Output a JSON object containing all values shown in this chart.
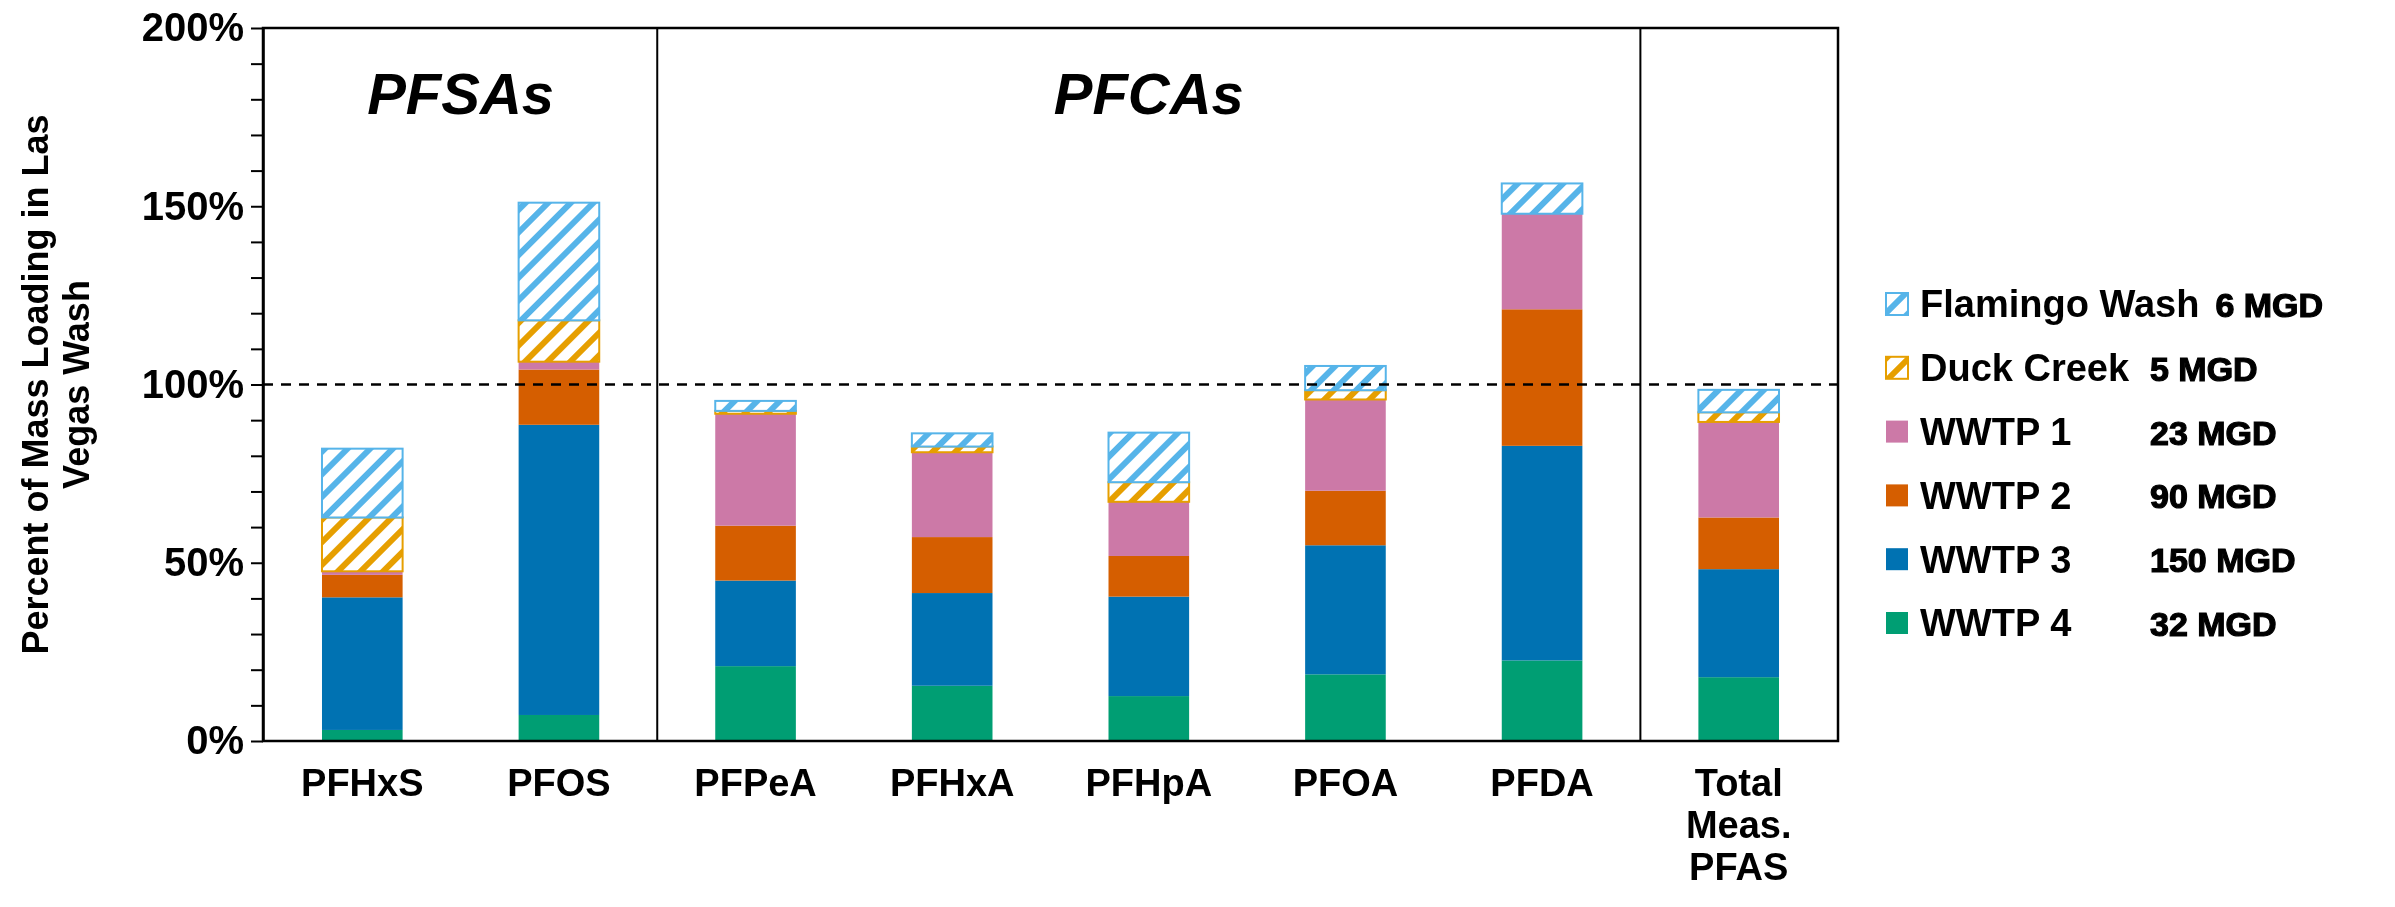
{
  "chart_data": {
    "type": "bar",
    "stacked": true,
    "ylabel": "Percent of Mass Loading in Las Vegas Wash",
    "categories": [
      "PFHxS",
      "PFOS",
      "PFPeA",
      "PFHxA",
      "PFHpA",
      "PFOA",
      "PFDA",
      "Total Meas. PFAS"
    ],
    "series": [
      {
        "name": "WWTP 4",
        "color": "#009e73",
        "values": [
          3.1,
          7.3,
          21.0,
          15.5,
          12.6,
          18.7,
          22.6,
          17.9
        ]
      },
      {
        "name": "WWTP 3",
        "color": "#0072b2",
        "values": [
          37.2,
          81.4,
          24.0,
          26.0,
          27.9,
          36.2,
          60.2,
          30.3
        ]
      },
      {
        "name": "WWTP 2",
        "color": "#d55e00",
        "values": [
          6.3,
          15.5,
          15.4,
          15.7,
          11.4,
          15.3,
          38.3,
          14.5
        ]
      },
      {
        "name": "WWTP 1",
        "color": "#cc79a7",
        "values": [
          1.0,
          2.2,
          31.4,
          23.8,
          15.2,
          25.6,
          26.8,
          26.8
        ]
      },
      {
        "name": "Duck Creek",
        "color": "#e69f00",
        "values": [
          15.1,
          11.6,
          0.8,
          1.6,
          5.5,
          2.6,
          null,
          2.7
        ]
      },
      {
        "name": "Flamingo Wash",
        "color": "#56b4e9",
        "values": [
          19.3,
          33.0,
          2.8,
          3.7,
          13.9,
          6.8,
          8.5,
          6.3
        ]
      }
    ],
    "ylim": [
      0,
      200
    ],
    "yticks": [
      {
        "value": 0,
        "label": "0%"
      },
      {
        "value": 10,
        "label": null
      },
      {
        "value": 20,
        "label": null
      },
      {
        "value": 30,
        "label": null
      },
      {
        "value": 40,
        "label": null
      },
      {
        "value": 50,
        "label": "50%"
      },
      {
        "value": 60,
        "label": null
      },
      {
        "value": 70,
        "label": null
      },
      {
        "value": 80,
        "label": null
      },
      {
        "value": 90,
        "label": null
      },
      {
        "value": 100,
        "label": "100%"
      },
      {
        "value": 110,
        "label": null
      },
      {
        "value": 120,
        "label": null
      },
      {
        "value": 130,
        "label": null
      },
      {
        "value": 140,
        "label": null
      },
      {
        "value": 150,
        "label": "150%"
      },
      {
        "value": 160,
        "label": null
      },
      {
        "value": 170,
        "label": null
      },
      {
        "value": 180,
        "label": null
      },
      {
        "value": 190,
        "label": null
      },
      {
        "value": 200,
        "label": "200%"
      }
    ],
    "ref_lines": [
      {
        "axis": "y",
        "value": 100,
        "color": "#000000",
        "line_style": "dashed"
      }
    ],
    "annotations": [
      "PFSAs",
      "PFCAs",
      "32 MGD",
      "150 MGD",
      "90 MGD",
      "23 MGD",
      "5 MGD",
      "6 MGD"
    ],
    "legend": "right",
    "grid": false
  }
}
